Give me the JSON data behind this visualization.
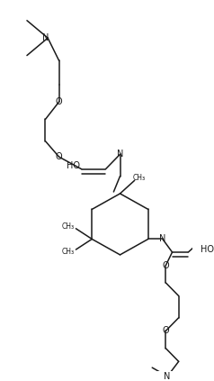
{
  "background_color": "#ffffff",
  "line_color": "#1a1a1a",
  "figsize": [
    2.38,
    4.23
  ],
  "dpi": 100,
  "xlim": [
    0,
    238
  ],
  "ylim": [
    0,
    423
  ]
}
